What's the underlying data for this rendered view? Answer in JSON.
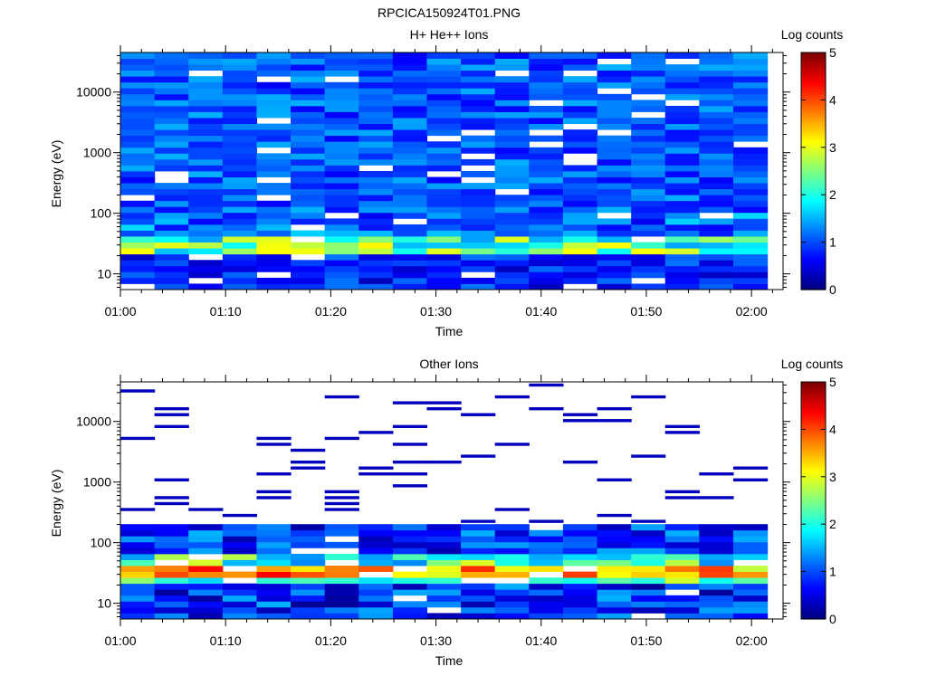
{
  "figure_title": "RPCICA150924T01.PNG",
  "chart_data": [
    {
      "type": "heatmap",
      "title": "H+ He++ Ions",
      "xlabel": "Time",
      "ylabel": "Energy (eV)",
      "x_ticks": [
        "01:00",
        "01:10",
        "01:20",
        "01:30",
        "01:40",
        "01:50",
        "02:00"
      ],
      "y_ticks": [
        "10",
        "100",
        "1000",
        "10000"
      ],
      "y_scale": "log",
      "ylim": [
        5.5,
        45000
      ],
      "xlim": [
        "01:00",
        "02:03"
      ],
      "colorbar": {
        "label": "Log counts",
        "range": [
          0,
          5
        ],
        "ticks": [
          "0",
          "1",
          "2",
          "3",
          "4",
          "5"
        ]
      },
      "time_bins": 19,
      "energy_bins": 40,
      "pattern": "mostly 0.5-1.3 background at all energies; 2.0-3.2 enhancement between 25 and 45 eV; gaps near 60-100 eV"
    },
    {
      "type": "heatmap",
      "title": "Other Ions",
      "xlabel": "Time",
      "ylabel": "Energy (eV)",
      "x_ticks": [
        "01:00",
        "01:10",
        "01:20",
        "01:30",
        "01:40",
        "01:50",
        "02:00"
      ],
      "y_ticks": [
        "10",
        "100",
        "1000",
        "10000"
      ],
      "y_scale": "log",
      "ylim": [
        5.5,
        45000
      ],
      "xlim": [
        "01:00",
        "02:03"
      ],
      "colorbar": {
        "label": "Log counts",
        "range": [
          0,
          5
        ],
        "ticks": [
          "0",
          "1",
          "2",
          "3",
          "4",
          "5"
        ]
      },
      "time_bins": 19,
      "energy_bins": 40,
      "pattern": "sparse counts above 300 eV; 0.3-1.5 between 60 and 200 eV; peak 3.0-4.3 between 25 and 45 eV; 0.5-1.5 below 20 eV"
    }
  ]
}
